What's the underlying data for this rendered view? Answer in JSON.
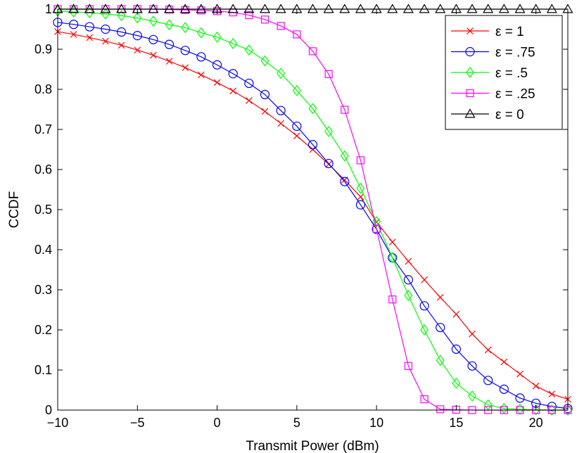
{
  "chart_data": {
    "type": "line",
    "title": "",
    "xlabel": "Transmit Power (dBm)",
    "ylabel": "CCDF",
    "xlim": [
      -10,
      22
    ],
    "ylim": [
      0,
      1
    ],
    "xticks": [
      -10,
      -5,
      0,
      5,
      10,
      15,
      20
    ],
    "xtick_labels": [
      "−10",
      "−5",
      "0",
      "5",
      "10",
      "15",
      "20"
    ],
    "yticks": [
      0,
      0.1,
      0.2,
      0.3,
      0.4,
      0.5,
      0.6,
      0.7,
      0.8,
      0.9,
      1
    ],
    "ytick_labels": [
      "0",
      "0.1",
      "0.2",
      "0.3",
      "0.4",
      "0.5",
      "0.6",
      "0.7",
      "0.8",
      "0.9",
      "1"
    ],
    "grid": false,
    "legend_position": "top-right",
    "x": [
      -10,
      -9,
      -8,
      -7,
      -6,
      -5,
      -4,
      -3,
      -2,
      -1,
      0,
      1,
      2,
      3,
      4,
      5,
      6,
      7,
      8,
      9,
      10,
      11,
      12,
      13,
      14,
      15,
      16,
      17,
      18,
      19,
      20,
      21,
      22
    ],
    "series": [
      {
        "name": "ε = 1",
        "color": "#ff0000",
        "marker": "x",
        "values": [
          0.944,
          0.937,
          0.929,
          0.92,
          0.91,
          0.898,
          0.885,
          0.87,
          0.854,
          0.836,
          0.817,
          0.796,
          0.772,
          0.745,
          0.715,
          0.684,
          0.65,
          0.613,
          0.574,
          0.532,
          0.469,
          0.419,
          0.371,
          0.325,
          0.281,
          0.239,
          0.19,
          0.15,
          0.12,
          0.09,
          0.06,
          0.04,
          0.027
        ]
      },
      {
        "name": "ε = .75",
        "color": "#0000ff",
        "marker": "o",
        "values": [
          0.967,
          0.962,
          0.956,
          0.95,
          0.943,
          0.934,
          0.924,
          0.912,
          0.897,
          0.881,
          0.861,
          0.839,
          0.815,
          0.787,
          0.747,
          0.708,
          0.662,
          0.615,
          0.57,
          0.512,
          0.451,
          0.38,
          0.325,
          0.26,
          0.206,
          0.152,
          0.11,
          0.074,
          0.052,
          0.03,
          0.017,
          0.009,
          0.004
        ]
      },
      {
        "name": "ε = .5",
        "color": "#00ff00",
        "marker": "diamond",
        "values": [
          0.995,
          0.993,
          0.991,
          0.988,
          0.984,
          0.978,
          0.97,
          0.961,
          0.954,
          0.941,
          0.93,
          0.914,
          0.898,
          0.871,
          0.84,
          0.797,
          0.752,
          0.695,
          0.634,
          0.553,
          0.47,
          0.38,
          0.286,
          0.2,
          0.124,
          0.067,
          0.035,
          0.013,
          0.004,
          0.002,
          0.001,
          0.0,
          0.0
        ]
      },
      {
        "name": "ε = .25",
        "color": "#ff00ff",
        "marker": "square",
        "values": [
          1.0,
          1.0,
          1.0,
          1.0,
          1.0,
          1.0,
          1.0,
          0.999,
          0.998,
          0.997,
          0.995,
          0.992,
          0.985,
          0.974,
          0.958,
          0.937,
          0.895,
          0.838,
          0.749,
          0.623,
          0.452,
          0.276,
          0.11,
          0.027,
          0.002,
          0.001,
          0.0,
          0.0,
          0.0,
          0.0,
          0.0,
          0.0,
          0.0
        ]
      },
      {
        "name": "ε = 0",
        "color": "#000000",
        "marker": "triangle",
        "values": [
          1,
          1,
          1,
          1,
          1,
          1,
          1,
          1,
          1,
          1,
          1,
          1,
          1,
          1,
          1,
          1,
          1,
          1,
          1,
          1,
          1,
          1,
          1,
          1,
          1,
          1,
          1,
          1,
          1,
          1,
          1,
          1,
          1
        ]
      }
    ]
  }
}
